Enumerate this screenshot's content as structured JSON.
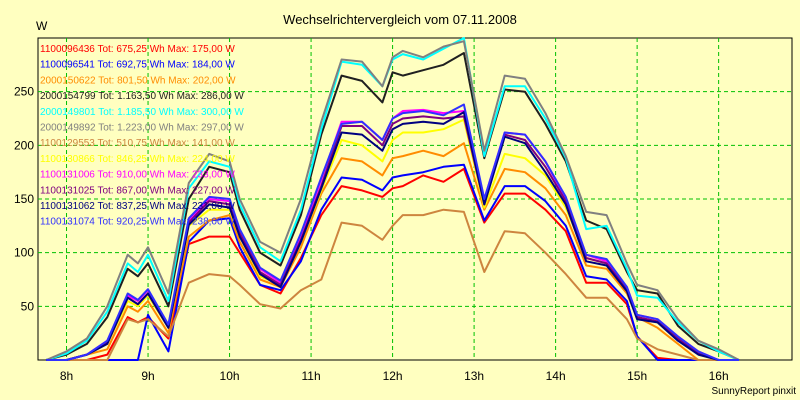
{
  "chart_data": {
    "type": "line",
    "title": "Wechselrichtervergleich vom 07.11.2008",
    "ylabel": "W",
    "xlabel": "",
    "footer": "SunnyReport pinxit",
    "x_ticks": [
      {
        "x": 8,
        "label": "8h"
      },
      {
        "x": 9,
        "label": "9h"
      },
      {
        "x": 10,
        "label": "10h"
      },
      {
        "x": 11,
        "label": "11h"
      },
      {
        "x": 12,
        "label": "12h"
      },
      {
        "x": 13,
        "label": "13h"
      },
      {
        "x": 14,
        "label": "14h"
      },
      {
        "x": 15,
        "label": "15h"
      },
      {
        "x": 16,
        "label": "16h"
      }
    ],
    "y_ticks": [
      50,
      100,
      150,
      200,
      250
    ],
    "xlim": [
      7.65,
      16.9
    ],
    "ylim": [
      0,
      300
    ],
    "grid": true,
    "legend_position": "top-left",
    "x": [
      7.75,
      8.0,
      8.25,
      8.5,
      8.75,
      8.875,
      9.0,
      9.25,
      9.5,
      9.75,
      10.0,
      10.125,
      10.375,
      10.625,
      10.875,
      11.125,
      11.375,
      11.625,
      11.875,
      12.0,
      12.125,
      12.375,
      12.625,
      12.875,
      13.125,
      13.375,
      13.625,
      13.875,
      14.125,
      14.375,
      14.625,
      14.875,
      15.0,
      15.25,
      15.5,
      15.75,
      16.0,
      16.25
    ],
    "series": [
      {
        "name": "1100096436 Tot: 675,25 Wh Max: 175,00 W",
        "color": "#ff0000",
        "values": [
          0,
          0,
          0,
          5,
          40,
          35,
          40,
          20,
          108,
          115,
          115,
          100,
          70,
          62,
          95,
          135,
          162,
          158,
          152,
          160,
          162,
          172,
          166,
          178,
          128,
          155,
          155,
          140,
          120,
          72,
          72,
          52,
          22,
          2,
          0,
          0,
          0,
          0
        ]
      },
      {
        "name": "1100096541 Tot: 692,75 Wh Max: 184,00 W",
        "color": "#0000ff",
        "values": [
          0,
          0,
          0,
          0,
          0,
          0,
          42,
          8,
          110,
          130,
          132,
          105,
          70,
          65,
          92,
          140,
          170,
          168,
          158,
          170,
          172,
          175,
          180,
          182,
          130,
          162,
          162,
          148,
          125,
          78,
          75,
          55,
          22,
          0,
          0,
          0,
          0,
          0
        ]
      },
      {
        "name": "2000150622 Tot: 801,50 Wh Max: 202,00 W",
        "color": "#ff8c00",
        "values": [
          0,
          0,
          5,
          10,
          50,
          45,
          55,
          25,
          115,
          130,
          135,
          110,
          75,
          68,
          105,
          155,
          188,
          185,
          172,
          188,
          190,
          195,
          190,
          202,
          140,
          178,
          175,
          160,
          135,
          88,
          85,
          62,
          40,
          30,
          15,
          0,
          0,
          0
        ]
      },
      {
        "name": "2000154799 Tot: 1.163,50 Wh Max: 286,00 W",
        "color": "#202020",
        "values": [
          0,
          5,
          15,
          40,
          85,
          78,
          90,
          50,
          150,
          180,
          175,
          140,
          100,
          88,
          135,
          210,
          265,
          260,
          240,
          268,
          265,
          270,
          275,
          286,
          188,
          252,
          250,
          220,
          185,
          130,
          122,
          82,
          65,
          62,
          32,
          15,
          8,
          0
        ]
      },
      {
        "name": "2000149801 Tot: 1.185,50 Wh Max: 300,00 W",
        "color": "#00ffff",
        "values": [
          0,
          6,
          18,
          45,
          90,
          82,
          98,
          55,
          160,
          185,
          180,
          145,
          105,
          92,
          140,
          215,
          278,
          275,
          255,
          280,
          285,
          280,
          290,
          300,
          190,
          255,
          255,
          225,
          188,
          122,
          125,
          85,
          60,
          58,
          35,
          18,
          8,
          0
        ]
      },
      {
        "name": "2000149892 Tot: 1.223,00 Wh Max: 297,00 W",
        "color": "#808080",
        "values": [
          0,
          8,
          20,
          50,
          98,
          90,
          105,
          62,
          165,
          192,
          185,
          150,
          110,
          100,
          150,
          222,
          280,
          278,
          255,
          282,
          288,
          282,
          292,
          297,
          195,
          265,
          262,
          230,
          190,
          138,
          135,
          90,
          70,
          65,
          38,
          18,
          10,
          0
        ]
      },
      {
        "name": "1100129553 Tot: 510,75 Wh Max: 141,00 W",
        "color": "#cd853f",
        "values": [
          0,
          0,
          0,
          0,
          38,
          35,
          38,
          22,
          72,
          80,
          78,
          70,
          52,
          48,
          65,
          75,
          128,
          125,
          112,
          125,
          135,
          135,
          140,
          138,
          82,
          120,
          118,
          100,
          80,
          58,
          58,
          38,
          20,
          10,
          5,
          0,
          0,
          0
        ]
      },
      {
        "name": "1100130866 Tot: 846,25 Wh Max: 224,00 W",
        "color": "#ffff00",
        "values": [
          0,
          0,
          5,
          15,
          55,
          50,
          60,
          30,
          125,
          140,
          140,
          115,
          78,
          70,
          110,
          158,
          205,
          200,
          185,
          205,
          212,
          212,
          215,
          224,
          142,
          192,
          188,
          172,
          142,
          95,
          90,
          65,
          40,
          35,
          20,
          5,
          0,
          0
        ]
      },
      {
        "name": "1100131006 Tot: 910,00 Wh Max: 233,00 W",
        "color": "#ff00ff",
        "values": [
          0,
          0,
          5,
          18,
          60,
          55,
          65,
          32,
          130,
          150,
          148,
          120,
          85,
          72,
          115,
          168,
          222,
          222,
          205,
          225,
          232,
          233,
          230,
          232,
          150,
          212,
          210,
          185,
          150,
          98,
          92,
          68,
          42,
          38,
          22,
          8,
          0,
          0
        ]
      },
      {
        "name": "1100131025 Tot: 867,00 Wh Max: 227,00 W",
        "color": "#800080",
        "values": [
          0,
          0,
          5,
          16,
          58,
          52,
          62,
          30,
          128,
          148,
          145,
          118,
          82,
          70,
          112,
          162,
          218,
          218,
          200,
          220,
          225,
          227,
          225,
          227,
          145,
          210,
          205,
          180,
          148,
          95,
          90,
          66,
          40,
          36,
          20,
          6,
          0,
          0
        ]
      },
      {
        "name": "1100131062 Tot: 837,25 Wh Max: 231,00 W",
        "color": "#000080",
        "values": [
          0,
          0,
          5,
          15,
          58,
          52,
          62,
          30,
          126,
          145,
          142,
          115,
          80,
          68,
          110,
          160,
          212,
          210,
          195,
          215,
          220,
          222,
          220,
          231,
          145,
          208,
          202,
          175,
          145,
          92,
          88,
          64,
          38,
          35,
          18,
          5,
          0,
          0
        ]
      },
      {
        "name": "1100131074 Tot: 920,25 Wh Max: 238,00 W",
        "color": "#3030ff",
        "values": [
          0,
          0,
          5,
          18,
          62,
          56,
          66,
          33,
          132,
          152,
          150,
          122,
          86,
          74,
          118,
          170,
          220,
          222,
          205,
          225,
          230,
          232,
          228,
          238,
          150,
          212,
          210,
          185,
          152,
          98,
          94,
          68,
          42,
          38,
          22,
          8,
          0,
          0
        ]
      }
    ]
  }
}
